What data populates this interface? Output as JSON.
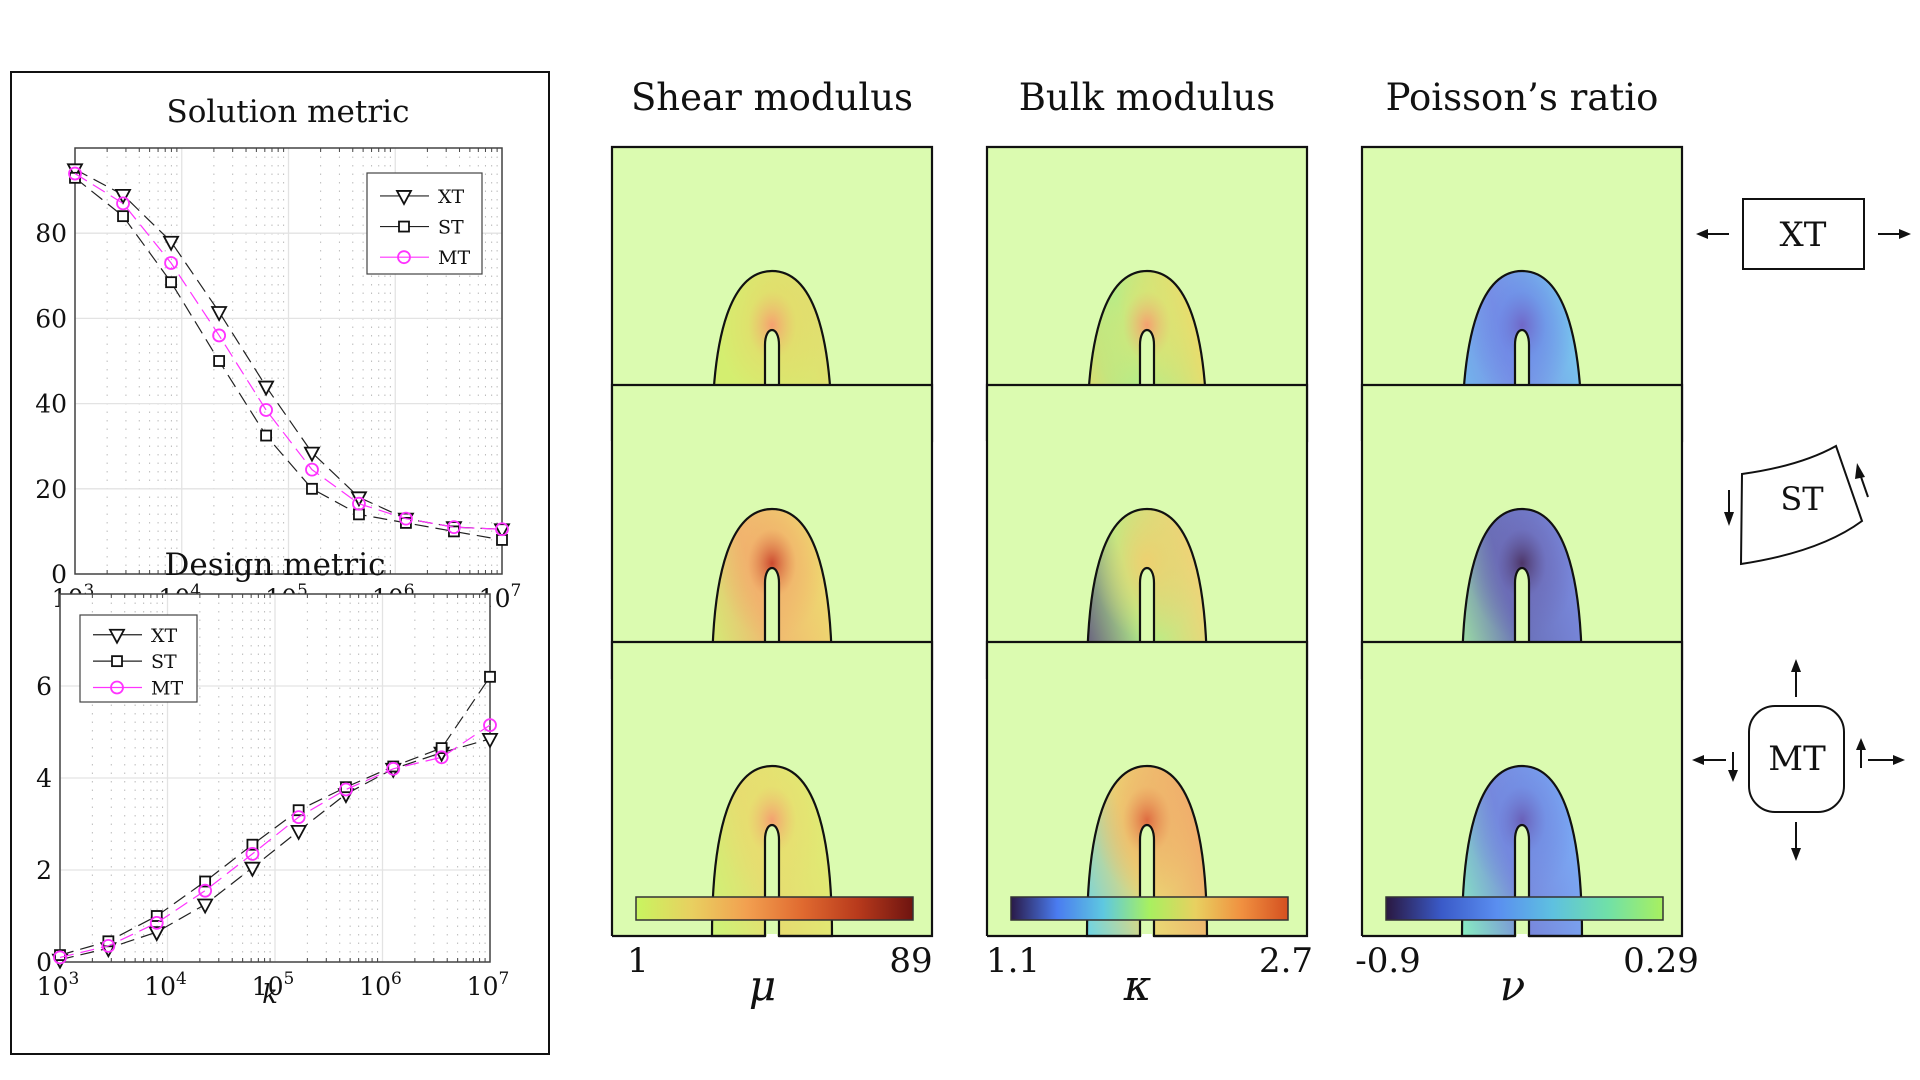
{
  "chart_data": [
    {
      "id": "solution",
      "type": "line",
      "title": "Solution metric",
      "xlabel": "",
      "ylabel": "",
      "xscale": "log",
      "xlim_log10": [
        3,
        7
      ],
      "ylim": [
        0,
        100
      ],
      "x_log10": [
        3,
        3.45,
        3.9,
        4.35,
        4.79,
        5.22,
        5.66,
        6.1,
        6.55,
        7
      ],
      "xticks": [
        {
          "exp": "3",
          "value": 3
        },
        {
          "exp": "4",
          "value": 4
        },
        {
          "exp": "5",
          "value": 5
        },
        {
          "exp": "6",
          "value": 6
        },
        {
          "exp": "7",
          "value": 7
        }
      ],
      "yticks": [
        0,
        20,
        40,
        60,
        80
      ],
      "grid": true,
      "legend_position": "top-right",
      "series": [
        {
          "name": "XT",
          "marker": "triangle-down",
          "color": "#000000",
          "values": [
            95,
            89,
            78,
            61.5,
            44,
            28.5,
            18,
            13,
            11,
            10.5
          ]
        },
        {
          "name": "ST",
          "marker": "square",
          "color": "#000000",
          "values": [
            93,
            84,
            68.5,
            50,
            32.5,
            20,
            14,
            12,
            10,
            8
          ]
        },
        {
          "name": "MT",
          "marker": "circle",
          "color": "#ff33ff",
          "values": [
            94,
            87,
            73,
            56,
            38.5,
            24.5,
            16.5,
            13,
            11,
            10.5
          ]
        }
      ]
    },
    {
      "id": "design",
      "type": "line",
      "title": "Design metric",
      "xlabel": "k",
      "ylabel": "",
      "xscale": "log",
      "xlim_log10": [
        3,
        7
      ],
      "ylim": [
        0,
        8
      ],
      "x_log10": [
        3,
        3.45,
        3.9,
        4.35,
        4.79,
        5.22,
        5.66,
        6.1,
        6.55,
        7
      ],
      "xticks": [
        {
          "exp": "3",
          "value": 3
        },
        {
          "exp": "4",
          "value": 4
        },
        {
          "exp": "5",
          "value": 5
        },
        {
          "exp": "6",
          "value": 6
        },
        {
          "exp": "7",
          "value": 7
        }
      ],
      "yticks": [
        0,
        2,
        4,
        6
      ],
      "grid": true,
      "legend_position": "top-left",
      "series": [
        {
          "name": "XT",
          "marker": "triangle-down",
          "color": "#000000",
          "values": [
            0.05,
            0.3,
            0.65,
            1.25,
            2.05,
            2.85,
            3.65,
            4.2,
            4.55,
            4.85
          ]
        },
        {
          "name": "ST",
          "marker": "square",
          "color": "#000000",
          "values": [
            0.15,
            0.45,
            1.0,
            1.75,
            2.55,
            3.3,
            3.8,
            4.25,
            4.65,
            6.2
          ]
        },
        {
          "name": "MT",
          "marker": "circle",
          "color": "#ff33ff",
          "values": [
            0.1,
            0.35,
            0.85,
            1.55,
            2.35,
            3.15,
            3.75,
            4.2,
            4.45,
            5.15
          ]
        }
      ]
    }
  ],
  "fields": {
    "columns": [
      {
        "title": "Shear modulus",
        "symbol": "μ",
        "min_label": "1",
        "max_label": "89",
        "colormap": [
          "#c8f560",
          "#e8d060",
          "#f2a050",
          "#e06a30",
          "#b83a1c",
          "#6e1410"
        ]
      },
      {
        "title": "Bulk modulus",
        "symbol": "κ",
        "min_label": "1.1",
        "max_label": "2.7",
        "colormap": [
          "#2a1a48",
          "#4a7cf0",
          "#5ec8e0",
          "#a8f060",
          "#e8d060",
          "#f09040",
          "#d45020"
        ]
      },
      {
        "title": "Poisson’s ratio",
        "symbol": "ν",
        "min_label": "-0.9",
        "max_label": "0.29",
        "colormap": [
          "#2a1840",
          "#3a5ac8",
          "#5a8ef0",
          "#5ec0e0",
          "#70e0a8",
          "#a8f060"
        ]
      }
    ],
    "background_color": "#dbfbb0",
    "rows": [
      {
        "load_case": "XT",
        "cells": [
          {
            "inner": "#e6d86a",
            "outer": "#d5ee70",
            "hot": "#f6a070",
            "left_bottom": "#d4ee70",
            "right_bottom": "#e0e070"
          },
          {
            "inner": "#e2e270",
            "outer": "#a8f090",
            "hot": "#f5a070",
            "left_bottom": "#e8d868",
            "right_bottom": "#eadc6c"
          },
          {
            "inner": "#6a86e6",
            "outer": "#7a90e6",
            "hot": "#7068c8",
            "left_bottom": "#70c0ee",
            "right_bottom": "#78c4ee"
          }
        ]
      },
      {
        "load_case": "ST",
        "cells": [
          {
            "inner": "#f2ac6a",
            "outer": "#f0b870",
            "hot": "#cc4a30",
            "left_bottom": "#cef478",
            "right_bottom": "#eed870"
          },
          {
            "inner": "#eed070",
            "outer": "#b4f088",
            "hot": "#eed070",
            "left_bottom": "#5c4a7e",
            "right_bottom": "#eed478"
          },
          {
            "inner": "#6c68b4",
            "outer": "#6a70b8",
            "hot": "#4e3668",
            "left_bottom": "#a4f0a0",
            "right_bottom": "#7888dc"
          }
        ]
      },
      {
        "load_case": "MT",
        "cells": [
          {
            "inner": "#e8de70",
            "outer": "#e6dc70",
            "hot": "#f4a070",
            "left_bottom": "#ccf478",
            "right_bottom": "#e0ea74"
          },
          {
            "inner": "#f0b06a",
            "outer": "#ead874",
            "hot": "#de6a40",
            "left_bottom": "#6cd4e6",
            "right_bottom": "#f0ae6c"
          },
          {
            "inner": "#7088e0",
            "outer": "#7888dc",
            "hot": "#6a60b8",
            "left_bottom": "#88eec0",
            "right_bottom": "#7aa8f4"
          }
        ]
      }
    ]
  },
  "load_cases": [
    {
      "label": "XT",
      "description": "extension"
    },
    {
      "label": "ST",
      "description": "shear"
    },
    {
      "label": "MT",
      "description": "mixed"
    }
  ]
}
